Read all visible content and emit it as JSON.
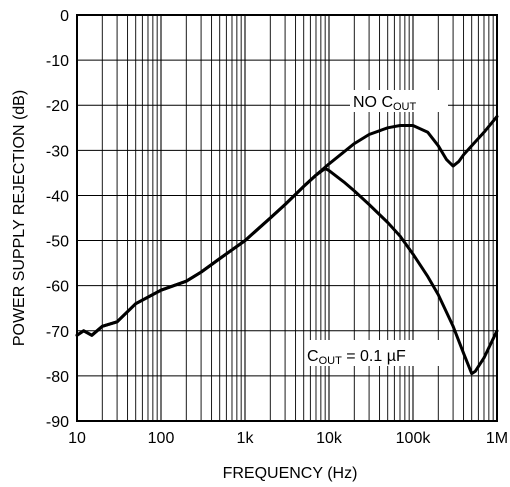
{
  "chart_data": {
    "type": "line",
    "title": "",
    "xlabel": "FREQUENCY (Hz)",
    "ylabel": "POWER SUPPLY REJECTION (dB)",
    "x_scale": "log",
    "xlim": [
      10,
      1000000
    ],
    "ylim": [
      -90,
      0
    ],
    "x_tick_values": [
      10,
      100,
      1000,
      10000,
      100000,
      1000000
    ],
    "x_tick_labels": [
      "10",
      "100",
      "1k",
      "10k",
      "100k",
      "1M"
    ],
    "y_tick_values": [
      0,
      -10,
      -20,
      -30,
      -40,
      -50,
      -60,
      -70,
      -80,
      -90
    ],
    "y_tick_labels": [
      "0",
      "-10",
      "-20",
      "-30",
      "-40",
      "-50",
      "-60",
      "-70",
      "-80",
      "-90"
    ],
    "grid": true,
    "series": [
      {
        "name": "NO C_OUT",
        "color": "#000000",
        "points": [
          [
            10,
            -71
          ],
          [
            12,
            -70
          ],
          [
            15,
            -71
          ],
          [
            20,
            -69
          ],
          [
            30,
            -68
          ],
          [
            50,
            -64
          ],
          [
            100,
            -61
          ],
          [
            200,
            -59
          ],
          [
            300,
            -57
          ],
          [
            500,
            -54
          ],
          [
            1000,
            -50
          ],
          [
            2000,
            -45
          ],
          [
            3000,
            -42
          ],
          [
            5000,
            -38
          ],
          [
            7000,
            -35.5
          ],
          [
            10000,
            -33
          ],
          [
            20000,
            -28.5
          ],
          [
            30000,
            -26.5
          ],
          [
            50000,
            -25
          ],
          [
            70000,
            -24.5
          ],
          [
            100000,
            -24.5
          ],
          [
            150000,
            -26
          ],
          [
            200000,
            -29
          ],
          [
            250000,
            -32
          ],
          [
            300000,
            -33.5
          ],
          [
            350000,
            -32.5
          ],
          [
            400000,
            -31
          ],
          [
            500000,
            -29
          ],
          [
            700000,
            -26
          ],
          [
            1000000,
            -22.5
          ]
        ]
      },
      {
        "name": "C_OUT = 0.1 μF",
        "color": "#000000",
        "points": [
          [
            10,
            -71
          ],
          [
            12,
            -70
          ],
          [
            15,
            -71
          ],
          [
            20,
            -69
          ],
          [
            30,
            -68
          ],
          [
            50,
            -64
          ],
          [
            100,
            -61
          ],
          [
            200,
            -59
          ],
          [
            300,
            -57
          ],
          [
            500,
            -54
          ],
          [
            1000,
            -50
          ],
          [
            2000,
            -45
          ],
          [
            3000,
            -42
          ],
          [
            5000,
            -38
          ],
          [
            7000,
            -35.5
          ],
          [
            9000,
            -34
          ],
          [
            10000,
            -34.5
          ],
          [
            15000,
            -37
          ],
          [
            20000,
            -39
          ],
          [
            30000,
            -42
          ],
          [
            50000,
            -46
          ],
          [
            70000,
            -49
          ],
          [
            100000,
            -53
          ],
          [
            150000,
            -58
          ],
          [
            200000,
            -62
          ],
          [
            300000,
            -69
          ],
          [
            400000,
            -75
          ],
          [
            500000,
            -79.5
          ],
          [
            550000,
            -79
          ],
          [
            700000,
            -76
          ],
          [
            1000000,
            -70
          ]
        ]
      }
    ],
    "annotations": {
      "no_cout": {
        "main": "NO C",
        "sub": "OUT"
      },
      "cout": {
        "main": "C",
        "sub": "OUT",
        "tail": " = 0.1 µF"
      }
    }
  }
}
